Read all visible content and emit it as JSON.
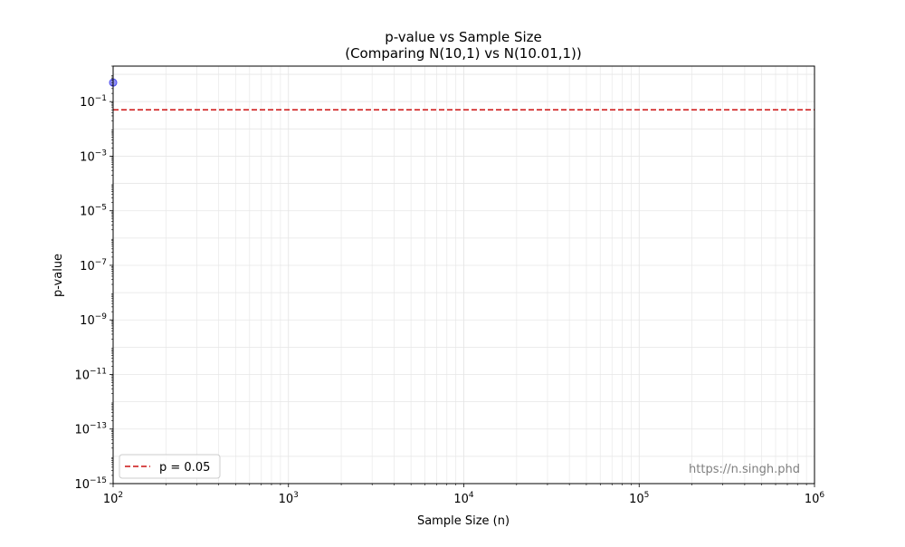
{
  "chart_data": {
    "type": "scatter",
    "title": "p-value vs Sample Size",
    "subtitle": "(Comparing N(10,1) vs N(10.01,1))",
    "xlabel": "Sample Size (n)",
    "ylabel": "p-value",
    "xscale": "log",
    "yscale": "log",
    "xlim": [
      100,
      1000000
    ],
    "ylim": [
      1e-15,
      2
    ],
    "x_ticks": [
      {
        "value": 100,
        "base": "10",
        "exp": "2"
      },
      {
        "value": 1000,
        "base": "10",
        "exp": "3"
      },
      {
        "value": 10000,
        "base": "10",
        "exp": "4"
      },
      {
        "value": 100000,
        "base": "10",
        "exp": "5"
      },
      {
        "value": 1000000,
        "base": "10",
        "exp": "6"
      }
    ],
    "y_ticks": [
      {
        "value": 1e-15,
        "base": "10",
        "exp": "−15"
      },
      {
        "value": 1e-13,
        "base": "10",
        "exp": "−13"
      },
      {
        "value": 1e-11,
        "base": "10",
        "exp": "−11"
      },
      {
        "value": 1e-09,
        "base": "10",
        "exp": "−9"
      },
      {
        "value": 1e-07,
        "base": "10",
        "exp": "−7"
      },
      {
        "value": 1e-05,
        "base": "10",
        "exp": "−5"
      },
      {
        "value": 0.001,
        "base": "10",
        "exp": "−3"
      },
      {
        "value": 0.1,
        "base": "10",
        "exp": "−1"
      }
    ],
    "grid": true,
    "series": [
      {
        "color": "#4b4bf0",
        "points": [
          {
            "x": 100,
            "y": 0.5
          }
        ]
      }
    ],
    "reference_lines": [
      {
        "y": 0.05,
        "label": "p = 0.05",
        "color": "#cc1111",
        "style": "dashed"
      }
    ],
    "legend": {
      "location": "lower-left",
      "entries": [
        "p = 0.05"
      ]
    },
    "watermark": "https://n.singh.phd"
  }
}
